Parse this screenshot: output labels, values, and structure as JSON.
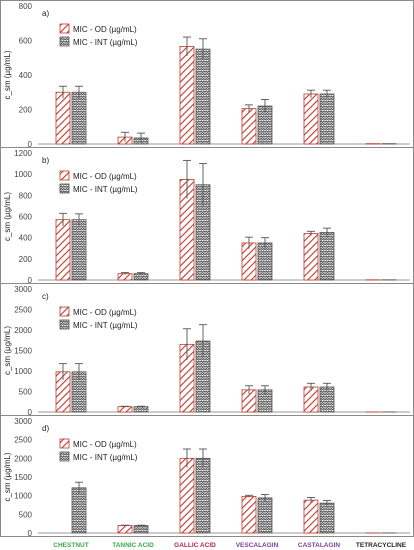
{
  "colors": {
    "od_stroke": "#c0392b",
    "int_stroke": "#555555",
    "errorbar": "#555555",
    "chestnut": "#3da84a",
    "tannic_acid": "#3da84a",
    "gallic_acid": "#b7254e",
    "vescalagin": "#7b3fa0",
    "castalagin": "#7b3fa0",
    "tetracycline": "#222222"
  },
  "chart_data": [
    {
      "type": "bar",
      "panel_label": "a)",
      "ylabel": "c_sm (µg/mL)",
      "ylim": [
        0,
        800
      ],
      "yticks": [
        0,
        200,
        400,
        600,
        800
      ],
      "categories": [
        "CHESTNUT",
        "TANNIC ACID",
        "GALLIC ACID",
        "VESCALAGIN",
        "CASTALAGIN",
        "TETRACYCLINE"
      ],
      "legend": "top-left",
      "series": [
        {
          "name": "MIC - OD (µg/mL)",
          "values": [
            300,
            40,
            565,
            205,
            290,
            2
          ],
          "errors": [
            35,
            28,
            55,
            22,
            22,
            0
          ]
        },
        {
          "name": "MIC - INT (µg/mL)",
          "values": [
            300,
            35,
            550,
            220,
            290,
            2
          ],
          "errors": [
            35,
            28,
            60,
            38,
            22,
            0
          ]
        }
      ]
    },
    {
      "type": "bar",
      "panel_label": "b)",
      "ylabel": "c_sm (µg/mL)",
      "ylim": [
        0,
        1200
      ],
      "yticks": [
        0,
        200,
        400,
        600,
        800,
        1000,
        1200
      ],
      "categories": [
        "CHESTNUT",
        "TANNIC ACID",
        "GALLIC ACID",
        "VESCALAGIN",
        "CASTALAGIN",
        "TETRACYCLINE"
      ],
      "legend": "top-left",
      "series": [
        {
          "name": "MIC - OD (µg/mL)",
          "values": [
            570,
            60,
            950,
            350,
            440,
            2
          ],
          "errors": [
            60,
            10,
            180,
            55,
            20,
            0
          ]
        },
        {
          "name": "MIC - INT (µg/mL)",
          "values": [
            570,
            60,
            900,
            350,
            450,
            2
          ],
          "errors": [
            55,
            10,
            200,
            50,
            40,
            0
          ]
        }
      ]
    },
    {
      "type": "bar",
      "panel_label": "c)",
      "ylabel": "c_sm (µg/mL)",
      "ylim": [
        0,
        3000
      ],
      "yticks": [
        0,
        500,
        1000,
        1500,
        2000,
        2500,
        3000
      ],
      "categories": [
        "CHESTNUT",
        "TANNIC ACID",
        "GALLIC ACID",
        "VESCALAGIN",
        "CASTALAGIN",
        "TETRACYCLINE"
      ],
      "legend": "top-left",
      "series": [
        {
          "name": "MIC - OD (µg/mL)",
          "values": [
            980,
            130,
            1650,
            540,
            610,
            2
          ],
          "errors": [
            200,
            10,
            380,
            100,
            90,
            0
          ]
        },
        {
          "name": "MIC - INT (µg/mL)",
          "values": [
            980,
            130,
            1730,
            540,
            610,
            2
          ],
          "errors": [
            200,
            10,
            400,
            100,
            90,
            0
          ]
        }
      ]
    },
    {
      "type": "bar",
      "panel_label": "d)",
      "ylabel": "c_sm (µg/mL)",
      "ylim": [
        0,
        3000
      ],
      "yticks": [
        0,
        500,
        1000,
        1500,
        2000,
        2500,
        3000
      ],
      "categories": [
        "CHESTNUT",
        "TANNIC ACID",
        "GALLIC ACID",
        "VESCALAGIN",
        "CASTALAGIN",
        "TETRACYCLINE"
      ],
      "legend": "top-left",
      "series": [
        {
          "name": "MIC - OD (µg/mL)",
          "values": [
            0,
            200,
            2000,
            980,
            880,
            2
          ],
          "errors": [
            0,
            10,
            250,
            30,
            70,
            0
          ]
        },
        {
          "name": "MIC - INT (µg/mL)",
          "values": [
            1210,
            200,
            2000,
            940,
            800,
            2
          ],
          "errors": [
            150,
            10,
            250,
            90,
            70,
            0
          ]
        }
      ]
    }
  ]
}
